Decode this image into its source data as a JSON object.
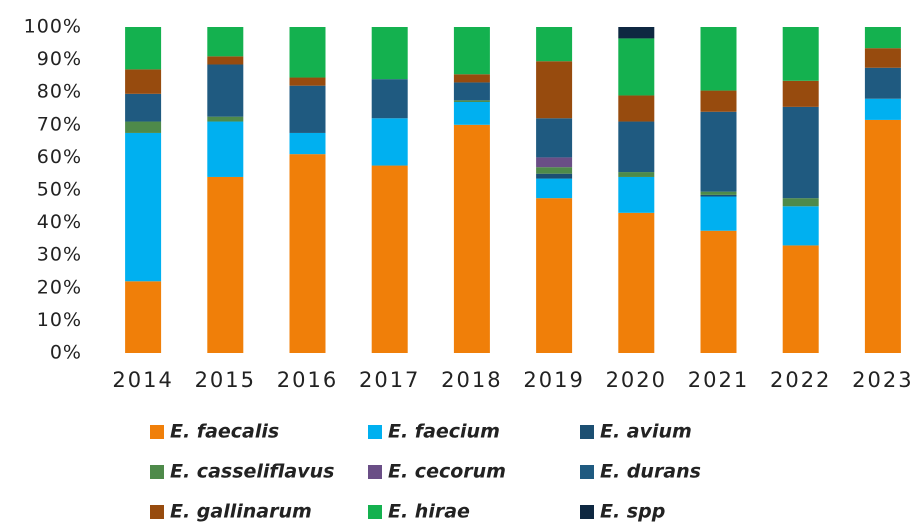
{
  "chart_data": {
    "type": "stacked_bar",
    "categories": [
      "2014",
      "2015",
      "2016",
      "2017",
      "2018",
      "2019",
      "2020",
      "2021",
      "2022",
      "2023"
    ],
    "series": [
      {
        "name": "E. faecalis",
        "color": "#f07f09",
        "values": [
          22,
          54,
          61,
          57.5,
          70,
          47.5,
          43,
          37.5,
          33,
          71.5
        ]
      },
      {
        "name": "E. faecium",
        "color": "#00b0f0",
        "values": [
          45.5,
          17,
          6.5,
          14.5,
          7,
          6,
          11,
          10.5,
          12,
          6.5
        ]
      },
      {
        "name": "E. avium",
        "color": "#1c4f72",
        "values": [
          0,
          0,
          0,
          0,
          0,
          1.5,
          0,
          0.5,
          0,
          0
        ]
      },
      {
        "name": "E. casseliflavus",
        "color": "#4e8a4a",
        "values": [
          3.5,
          1.5,
          0,
          0,
          0.5,
          2,
          1.5,
          1,
          2.5,
          0
        ]
      },
      {
        "name": "E. cecorum",
        "color": "#6a4e86",
        "values": [
          0,
          0,
          0,
          0,
          0,
          3,
          0,
          0,
          0,
          0
        ]
      },
      {
        "name": "E. durans",
        "color": "#1f5a80",
        "values": [
          8.5,
          16,
          14.5,
          12,
          5.5,
          12,
          15.5,
          24.5,
          28,
          9.5
        ]
      },
      {
        "name": "E. gallinarum",
        "color": "#974b0e",
        "values": [
          7.5,
          2.5,
          2.5,
          0,
          2.5,
          17.5,
          8,
          6.5,
          8,
          6
        ]
      },
      {
        "name": "E. hirae",
        "color": "#14b14f",
        "values": [
          13,
          9,
          15.5,
          16,
          14.5,
          10.5,
          17.5,
          19.5,
          16.5,
          6.5
        ]
      },
      {
        "name": "E. spp",
        "color": "#0e2841",
        "values": [
          0,
          0,
          0,
          0,
          0,
          0,
          3.5,
          0,
          0,
          0
        ]
      }
    ],
    "ylim": [
      0,
      100
    ],
    "yticks": [
      {
        "value": 0,
        "label": "0%"
      },
      {
        "value": 10,
        "label": "10%"
      },
      {
        "value": 20,
        "label": "20%"
      },
      {
        "value": 30,
        "label": "30%"
      },
      {
        "value": 40,
        "label": "40%"
      },
      {
        "value": 50,
        "label": "50%"
      },
      {
        "value": 60,
        "label": "60%"
      },
      {
        "value": 70,
        "label": "70%"
      },
      {
        "value": 80,
        "label": "80%"
      },
      {
        "value": 90,
        "label": "90%"
      },
      {
        "value": 100,
        "label": "100%"
      }
    ],
    "legend": "bottom"
  }
}
